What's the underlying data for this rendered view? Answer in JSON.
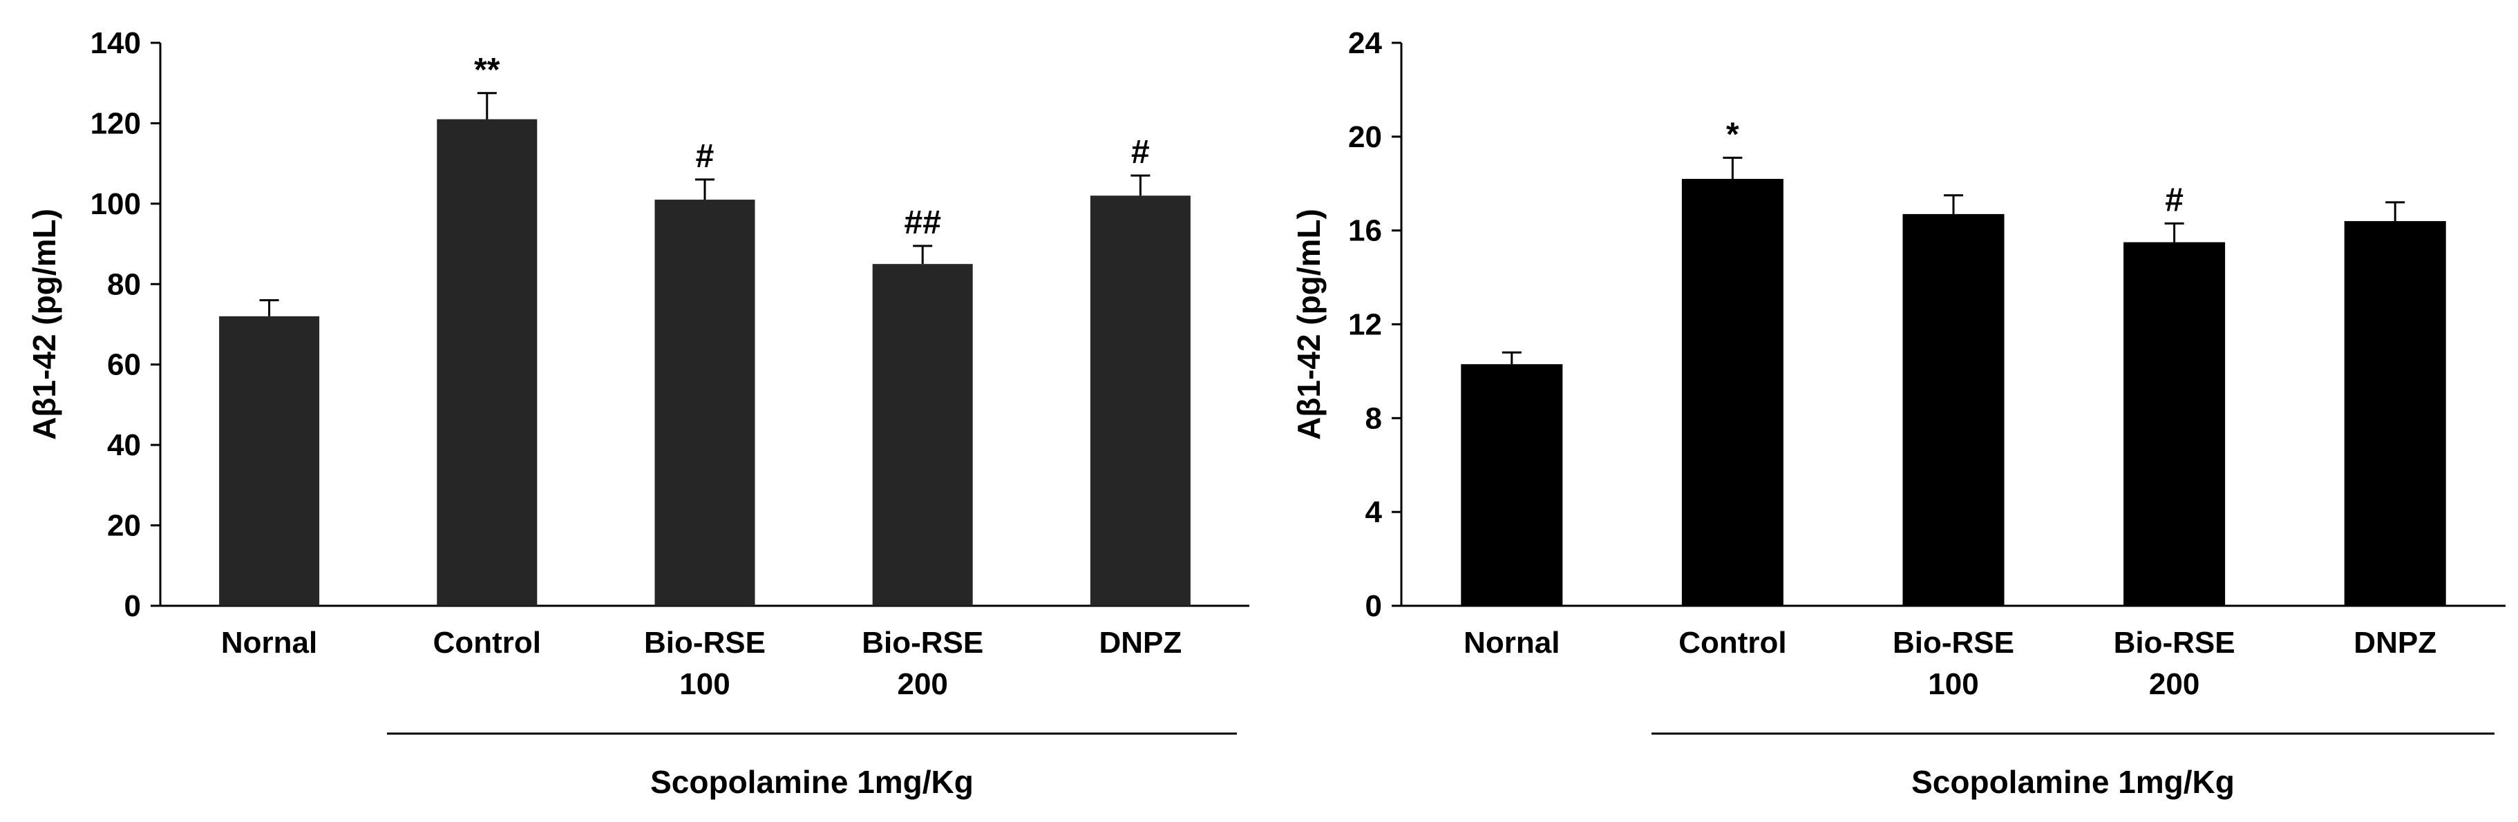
{
  "chart_data": [
    {
      "type": "bar",
      "ylabel": "Aβ1-42 (pg/mL)",
      "ylim": [
        0,
        140
      ],
      "yticks": [
        "0",
        "20",
        "40",
        "60",
        "80",
        "100",
        "120",
        "140"
      ],
      "categories": [
        [
          "Nornal"
        ],
        [
          "Control"
        ],
        [
          "Bio-RSE",
          "100"
        ],
        [
          "Bio-RSE",
          "200"
        ],
        [
          "DNPZ"
        ]
      ],
      "values": [
        72,
        121,
        101,
        85,
        102
      ],
      "errors": [
        4,
        6.5,
        5,
        4.5,
        5
      ],
      "significance": [
        "",
        "**",
        "#",
        "##",
        "#"
      ],
      "group_label": "Scopolamine 1mg/Kg",
      "bar_color": "#262626"
    },
    {
      "type": "bar",
      "ylabel": "Aβ1-42 (pg/mL)",
      "ylim": [
        0,
        24
      ],
      "yticks": [
        "0",
        "4",
        "8",
        "12",
        "16",
        "20",
        "24"
      ],
      "categories": [
        [
          "Nornal"
        ],
        [
          "Control"
        ],
        [
          "Bio-RSE",
          "100"
        ],
        [
          "Bio-RSE",
          "200"
        ],
        [
          "DNPZ"
        ]
      ],
      "values": [
        10.3,
        18.2,
        16.7,
        15.5,
        16.4
      ],
      "errors": [
        0.5,
        0.9,
        0.8,
        0.8,
        0.8
      ],
      "significance": [
        "",
        "*",
        "",
        "#",
        ""
      ],
      "group_label": "Scopolamine 1mg/Kg",
      "bar_color": "#000000"
    }
  ]
}
